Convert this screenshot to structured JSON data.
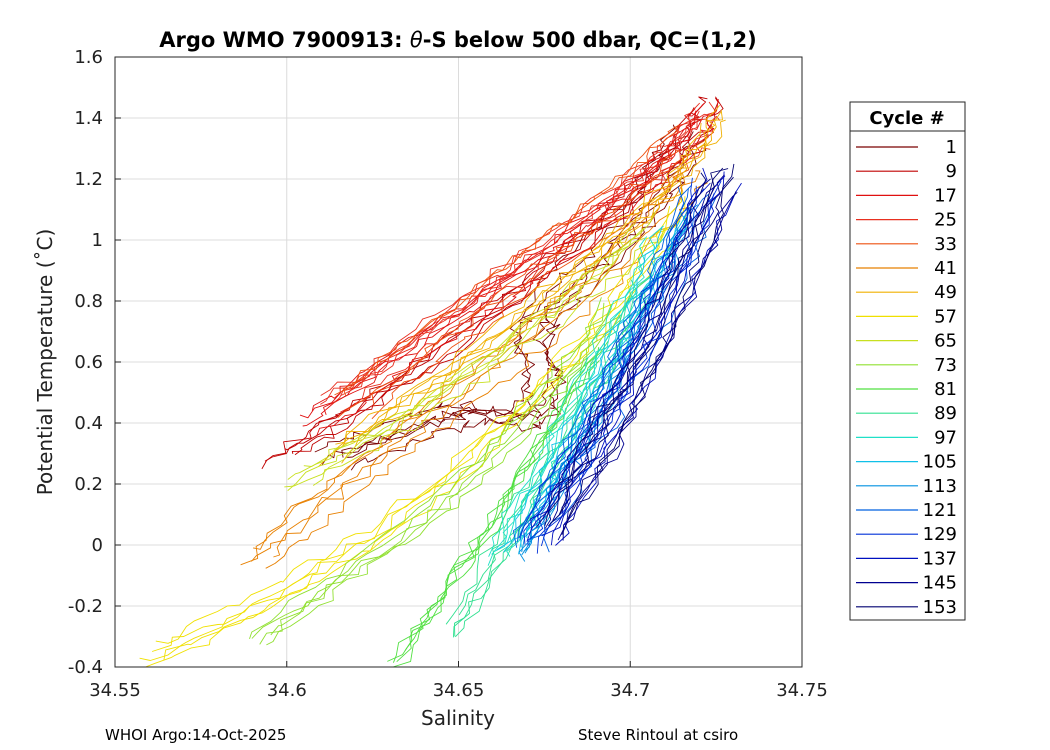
{
  "chart_data": {
    "type": "line",
    "title_prefix": "Argo WMO 7900913: ",
    "title_theta": "θ",
    "title_suffix": "-S below 500 dbar,  QC=(1,2)",
    "xlabel": "Salinity",
    "ylabel": "Potential Temperature (˚C)",
    "xlim": [
      34.55,
      34.75
    ],
    "ylim": [
      -0.4,
      1.6
    ],
    "xticks": [
      "34.55",
      "34.6",
      "34.65",
      "34.7",
      "34.75"
    ],
    "yticks": [
      "-0.4",
      "-0.2",
      "0",
      "0.2",
      "0.4",
      "0.6",
      "0.8",
      "1",
      "1.2",
      "1.4",
      "1.6"
    ],
    "grid": true,
    "legend": {
      "title": "Cycle #",
      "position": "right",
      "entries": [
        {
          "label": "1",
          "color": "#7a0000"
        },
        {
          "label": "9",
          "color": "#c00000"
        },
        {
          "label": "17",
          "color": "#e01010"
        },
        {
          "label": "25",
          "color": "#e83020"
        },
        {
          "label": "33",
          "color": "#ee5010"
        },
        {
          "label": "41",
          "color": "#e88000"
        },
        {
          "label": "49",
          "color": "#f0b000"
        },
        {
          "label": "57",
          "color": "#f0e000"
        },
        {
          "label": "65",
          "color": "#c8e020"
        },
        {
          "label": "73",
          "color": "#90e030"
        },
        {
          "label": "81",
          "color": "#50e040"
        },
        {
          "label": "89",
          "color": "#30e090"
        },
        {
          "label": "97",
          "color": "#20e0c8"
        },
        {
          "label": "105",
          "color": "#10c0e8"
        },
        {
          "label": "113",
          "color": "#0090e0"
        },
        {
          "label": "121",
          "color": "#0060e0"
        },
        {
          "label": "129",
          "color": "#0030d8"
        },
        {
          "label": "137",
          "color": "#0010c0"
        },
        {
          "label": "145",
          "color": "#000090"
        },
        {
          "label": "153",
          "color": "#000070"
        }
      ]
    },
    "series_shape": [
      {
        "cycle": 1,
        "S": [
          34.614,
          34.625,
          34.638,
          34.648,
          34.656,
          34.668,
          34.673,
          34.676,
          34.671,
          34.674,
          34.685,
          34.695,
          34.705,
          34.712,
          34.718
        ],
        "T": [
          0.28,
          0.33,
          0.38,
          0.42,
          0.43,
          0.4,
          0.45,
          0.55,
          0.65,
          0.75,
          0.88,
          1.0,
          1.12,
          1.25,
          1.35
        ]
      },
      {
        "cycle": 9,
        "S": [
          34.597,
          34.61,
          34.625,
          34.642,
          34.66,
          34.678,
          34.695,
          34.708,
          34.718,
          34.722
        ],
        "T": [
          0.27,
          0.36,
          0.47,
          0.6,
          0.76,
          0.92,
          1.08,
          1.22,
          1.35,
          1.46
        ]
      },
      {
        "cycle": 17,
        "S": [
          34.605,
          34.62,
          34.638,
          34.656,
          34.672,
          34.688,
          34.702,
          34.714,
          34.722
        ],
        "T": [
          0.4,
          0.52,
          0.66,
          0.8,
          0.93,
          1.06,
          1.19,
          1.32,
          1.44
        ]
      },
      {
        "cycle": 25,
        "S": [
          34.612,
          34.628,
          34.645,
          34.662,
          34.678,
          34.692,
          34.706,
          34.716,
          34.722
        ],
        "T": [
          0.45,
          0.58,
          0.72,
          0.86,
          0.99,
          1.11,
          1.23,
          1.34,
          1.42
        ]
      },
      {
        "cycle": 33,
        "S": [
          34.62,
          34.636,
          34.652,
          34.668,
          34.684,
          34.698,
          34.71,
          34.72
        ],
        "T": [
          0.46,
          0.6,
          0.74,
          0.88,
          1.01,
          1.13,
          1.25,
          1.36
        ]
      },
      {
        "cycle": 41,
        "S": [
          34.592,
          34.605,
          34.62,
          34.636,
          34.652,
          34.668,
          34.684,
          34.698,
          34.71,
          34.72
        ],
        "T": [
          -0.06,
          0.08,
          0.22,
          0.36,
          0.5,
          0.65,
          0.8,
          0.95,
          1.1,
          1.25
        ]
      },
      {
        "cycle": 49,
        "S": [
          34.61,
          34.628,
          34.646,
          34.664,
          34.68,
          34.694,
          34.708,
          34.718,
          34.724
        ],
        "T": [
          0.3,
          0.44,
          0.58,
          0.73,
          0.88,
          1.02,
          1.16,
          1.3,
          1.44
        ]
      },
      {
        "cycle": 57,
        "S": [
          34.56,
          34.58,
          34.6,
          34.62,
          34.64,
          34.658,
          34.676,
          34.692,
          34.706,
          34.716
        ],
        "T": [
          -0.36,
          -0.26,
          -0.14,
          0.0,
          0.16,
          0.34,
          0.54,
          0.74,
          0.96,
          1.16
        ]
      },
      {
        "cycle": 65,
        "S": [
          34.603,
          34.622,
          34.642,
          34.66,
          34.678,
          34.694,
          34.708
        ],
        "T": [
          0.22,
          0.34,
          0.47,
          0.62,
          0.77,
          0.92,
          1.08
        ]
      },
      {
        "cycle": 73,
        "S": [
          34.593,
          34.612,
          34.632,
          34.652,
          34.67,
          34.686,
          34.7
        ],
        "T": [
          -0.3,
          -0.14,
          0.02,
          0.2,
          0.4,
          0.62,
          0.84
        ]
      },
      {
        "cycle": 81,
        "S": [
          34.634,
          34.646,
          34.658,
          34.67,
          34.682,
          34.694
        ],
        "T": [
          -0.37,
          -0.18,
          0.02,
          0.24,
          0.46,
          0.68
        ]
      },
      {
        "cycle": 89,
        "S": [
          34.65,
          34.662,
          34.674,
          34.686,
          34.698,
          34.708
        ],
        "T": [
          -0.28,
          -0.06,
          0.18,
          0.42,
          0.66,
          0.9
        ]
      },
      {
        "cycle": 97,
        "S": [
          34.662,
          34.672,
          34.682,
          34.692,
          34.702,
          34.712
        ],
        "T": [
          -0.05,
          0.16,
          0.38,
          0.6,
          0.82,
          1.04
        ]
      },
      {
        "cycle": 105,
        "S": [
          34.666,
          34.676,
          34.686,
          34.696,
          34.706,
          34.716
        ],
        "T": [
          0.0,
          0.22,
          0.44,
          0.66,
          0.88,
          1.1
        ]
      },
      {
        "cycle": 113,
        "S": [
          34.668,
          34.68,
          34.692,
          34.702,
          34.712,
          34.72
        ],
        "T": [
          -0.04,
          0.2,
          0.44,
          0.68,
          0.92,
          1.14
        ]
      },
      {
        "cycle": 121,
        "S": [
          34.67,
          34.682,
          34.694,
          34.704,
          34.714,
          34.722
        ],
        "T": [
          -0.02,
          0.22,
          0.46,
          0.7,
          0.94,
          1.18
        ]
      },
      {
        "cycle": 129,
        "S": [
          34.672,
          34.684,
          34.696,
          34.706,
          34.716,
          34.726
        ],
        "T": [
          0.0,
          0.24,
          0.48,
          0.72,
          0.96,
          1.22
        ]
      },
      {
        "cycle": 137,
        "S": [
          34.674,
          34.686,
          34.698,
          34.708,
          34.718,
          34.728
        ],
        "T": [
          0.02,
          0.26,
          0.5,
          0.74,
          0.98,
          1.26
        ]
      },
      {
        "cycle": 145,
        "S": [
          34.676,
          34.688,
          34.7,
          34.71,
          34.72,
          34.727
        ],
        "T": [
          0.04,
          0.28,
          0.52,
          0.76,
          1.0,
          1.22
        ]
      },
      {
        "cycle": 153,
        "S": [
          34.678,
          34.69,
          34.702,
          34.712,
          34.72,
          34.728
        ],
        "T": [
          0.06,
          0.3,
          0.54,
          0.78,
          1.02,
          1.25
        ]
      }
    ]
  },
  "footer": {
    "left": "WHOI Argo:14-Oct-2025",
    "right": "Steve Rintoul at csiro"
  }
}
